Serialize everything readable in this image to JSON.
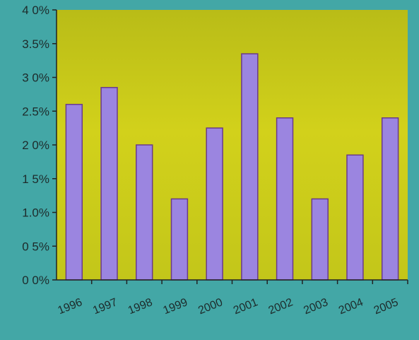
{
  "chart_data": {
    "type": "bar",
    "categories": [
      "1996",
      "1997",
      "1998",
      "1999",
      "2000",
      "2001",
      "2002",
      "2003",
      "2004",
      "2005"
    ],
    "values": [
      2.6,
      2.85,
      2.0,
      1.2,
      2.25,
      3.35,
      2.4,
      1.2,
      1.85,
      2.4
    ],
    "ylim": [
      0,
      4
    ],
    "yticks": [
      {
        "value": 0,
        "label": "0 0%"
      },
      {
        "value": 0.5,
        "label": "0 5%"
      },
      {
        "value": 1.0,
        "label": "1.0%"
      },
      {
        "value": 1.5,
        "label": "1 5%"
      },
      {
        "value": 2.0,
        "label": "2 0%"
      },
      {
        "value": 2.5,
        "label": "2.5%"
      },
      {
        "value": 3.0,
        "label": "3 0%"
      },
      {
        "value": 3.5,
        "label": "3.5%"
      },
      {
        "value": 4.0,
        "label": "4 0%"
      }
    ],
    "grid": false,
    "colors": {
      "background": "#43a7a6",
      "plot_area": "#c9c91a",
      "bar_fill": "#9b85e0",
      "bar_stroke": "#6a3a8a",
      "axis": "#222222"
    }
  }
}
